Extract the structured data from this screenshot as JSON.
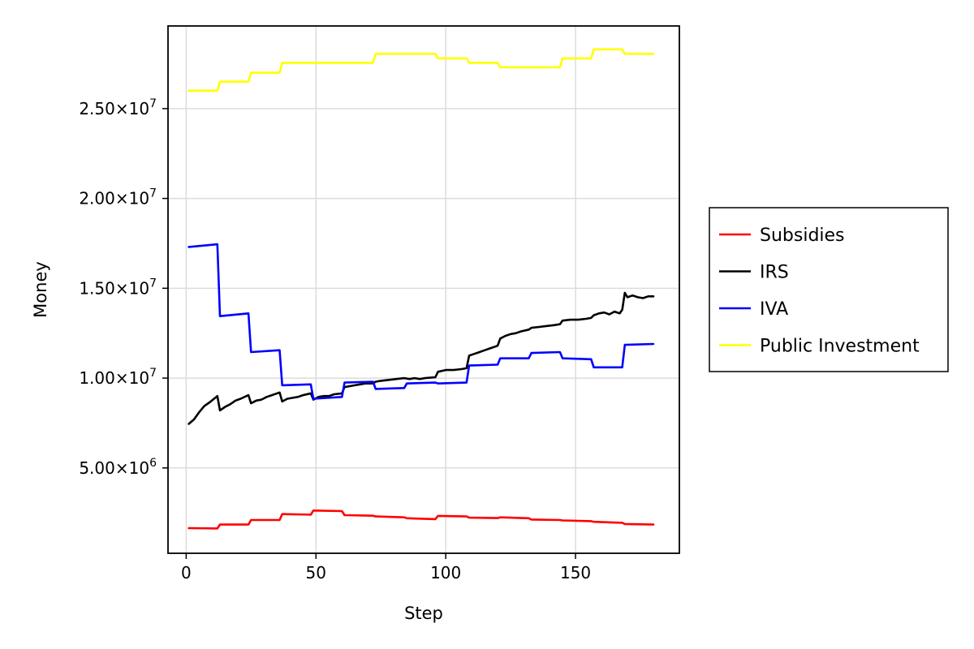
{
  "chart_data": {
    "type": "line",
    "title": "",
    "xlabel": "Step",
    "ylabel": "Money",
    "xlim": [
      -7,
      190
    ],
    "ylim": [
      250000,
      29600000
    ],
    "grid": true,
    "legend_position": "right",
    "x_ticks": [
      0,
      50,
      100,
      150
    ],
    "x_tick_labels": [
      "0",
      "50",
      "100",
      "150"
    ],
    "y_ticks": [
      5000000,
      10000000,
      15000000,
      20000000,
      25000000
    ],
    "y_tick_labels": [
      {
        "mantissa": "5.00×10",
        "exp": "6"
      },
      {
        "mantissa": "1.00×10",
        "exp": "7"
      },
      {
        "mantissa": "1.50×10",
        "exp": "7"
      },
      {
        "mantissa": "2.00×10",
        "exp": "7"
      },
      {
        "mantissa": "2.50×10",
        "exp": "7"
      }
    ],
    "series": [
      {
        "name": "Subsidies",
        "color": "#ff0000",
        "points": [
          [
            1,
            1650000
          ],
          [
            12,
            1630000
          ],
          [
            13,
            1850000
          ],
          [
            24,
            1850000
          ],
          [
            25,
            2100000
          ],
          [
            36,
            2100000
          ],
          [
            37,
            2430000
          ],
          [
            48,
            2400000
          ],
          [
            49,
            2630000
          ],
          [
            60,
            2600000
          ],
          [
            61,
            2370000
          ],
          [
            72,
            2340000
          ],
          [
            73,
            2300000
          ],
          [
            84,
            2250000
          ],
          [
            85,
            2200000
          ],
          [
            96,
            2150000
          ],
          [
            97,
            2330000
          ],
          [
            108,
            2300000
          ],
          [
            109,
            2230000
          ],
          [
            120,
            2210000
          ],
          [
            121,
            2250000
          ],
          [
            132,
            2200000
          ],
          [
            133,
            2130000
          ],
          [
            144,
            2100000
          ],
          [
            145,
            2080000
          ],
          [
            156,
            2040000
          ],
          [
            157,
            2000000
          ],
          [
            168,
            1950000
          ],
          [
            169,
            1880000
          ],
          [
            180,
            1850000
          ]
        ]
      },
      {
        "name": "IRS",
        "color": "#000000",
        "points": [
          [
            1,
            7450000
          ],
          [
            3,
            7700000
          ],
          [
            5,
            8100000
          ],
          [
            7,
            8450000
          ],
          [
            9,
            8650000
          ],
          [
            12,
            9000000
          ],
          [
            13,
            8200000
          ],
          [
            15,
            8400000
          ],
          [
            17,
            8550000
          ],
          [
            19,
            8750000
          ],
          [
            21,
            8850000
          ],
          [
            24,
            9050000
          ],
          [
            25,
            8600000
          ],
          [
            27,
            8750000
          ],
          [
            29,
            8800000
          ],
          [
            31,
            8950000
          ],
          [
            33,
            9050000
          ],
          [
            36,
            9200000
          ],
          [
            37,
            8700000
          ],
          [
            39,
            8850000
          ],
          [
            41,
            8900000
          ],
          [
            43,
            8950000
          ],
          [
            45,
            9050000
          ],
          [
            48,
            9150000
          ],
          [
            49,
            8800000
          ],
          [
            51,
            8950000
          ],
          [
            53,
            9000000
          ],
          [
            55,
            9000000
          ],
          [
            57,
            9100000
          ],
          [
            60,
            9150000
          ],
          [
            61,
            9500000
          ],
          [
            63,
            9550000
          ],
          [
            65,
            9600000
          ],
          [
            67,
            9650000
          ],
          [
            69,
            9700000
          ],
          [
            72,
            9700000
          ],
          [
            73,
            9800000
          ],
          [
            75,
            9850000
          ],
          [
            78,
            9900000
          ],
          [
            81,
            9950000
          ],
          [
            84,
            10000000
          ],
          [
            86,
            9950000
          ],
          [
            88,
            10000000
          ],
          [
            90,
            9950000
          ],
          [
            92,
            10000000
          ],
          [
            96,
            10050000
          ],
          [
            97,
            10350000
          ],
          [
            100,
            10450000
          ],
          [
            103,
            10450000
          ],
          [
            106,
            10500000
          ],
          [
            108,
            10550000
          ],
          [
            109,
            11250000
          ],
          [
            111,
            11350000
          ],
          [
            113,
            11450000
          ],
          [
            115,
            11550000
          ],
          [
            117,
            11650000
          ],
          [
            120,
            11800000
          ],
          [
            121,
            12200000
          ],
          [
            123,
            12350000
          ],
          [
            125,
            12450000
          ],
          [
            127,
            12500000
          ],
          [
            129,
            12600000
          ],
          [
            132,
            12700000
          ],
          [
            133,
            12800000
          ],
          [
            136,
            12850000
          ],
          [
            139,
            12900000
          ],
          [
            142,
            12950000
          ],
          [
            144,
            13000000
          ],
          [
            145,
            13200000
          ],
          [
            148,
            13250000
          ],
          [
            151,
            13250000
          ],
          [
            154,
            13300000
          ],
          [
            156,
            13350000
          ],
          [
            157,
            13500000
          ],
          [
            159,
            13600000
          ],
          [
            161,
            13650000
          ],
          [
            163,
            13550000
          ],
          [
            165,
            13700000
          ],
          [
            167,
            13600000
          ],
          [
            168,
            13800000
          ],
          [
            169,
            14750000
          ],
          [
            170,
            14500000
          ],
          [
            172,
            14600000
          ],
          [
            174,
            14500000
          ],
          [
            176,
            14450000
          ],
          [
            178,
            14550000
          ],
          [
            180,
            14550000
          ]
        ]
      },
      {
        "name": "IVA",
        "color": "#0000ff",
        "points": [
          [
            1,
            17300000
          ],
          [
            12,
            17450000
          ],
          [
            13,
            13450000
          ],
          [
            24,
            13600000
          ],
          [
            25,
            11450000
          ],
          [
            36,
            11550000
          ],
          [
            37,
            9600000
          ],
          [
            48,
            9650000
          ],
          [
            49,
            8850000
          ],
          [
            60,
            8950000
          ],
          [
            61,
            9750000
          ],
          [
            72,
            9800000
          ],
          [
            73,
            9400000
          ],
          [
            84,
            9450000
          ],
          [
            85,
            9700000
          ],
          [
            96,
            9750000
          ],
          [
            97,
            9700000
          ],
          [
            108,
            9750000
          ],
          [
            109,
            10700000
          ],
          [
            120,
            10750000
          ],
          [
            121,
            11100000
          ],
          [
            132,
            11100000
          ],
          [
            133,
            11400000
          ],
          [
            144,
            11450000
          ],
          [
            145,
            11100000
          ],
          [
            156,
            11050000
          ],
          [
            157,
            10600000
          ],
          [
            168,
            10600000
          ],
          [
            169,
            11850000
          ],
          [
            180,
            11900000
          ]
        ]
      },
      {
        "name": "Public Investment",
        "color": "#ffff00",
        "points": [
          [
            1,
            26000000
          ],
          [
            12,
            26000000
          ],
          [
            13,
            26500000
          ],
          [
            24,
            26500000
          ],
          [
            25,
            27000000
          ],
          [
            36,
            27000000
          ],
          [
            37,
            27550000
          ],
          [
            72,
            27550000
          ],
          [
            73,
            28050000
          ],
          [
            96,
            28050000
          ],
          [
            97,
            27800000
          ],
          [
            108,
            27800000
          ],
          [
            109,
            27550000
          ],
          [
            120,
            27550000
          ],
          [
            121,
            27300000
          ],
          [
            144,
            27300000
          ],
          [
            145,
            27800000
          ],
          [
            156,
            27800000
          ],
          [
            157,
            28300000
          ],
          [
            168,
            28300000
          ],
          [
            169,
            28050000
          ],
          [
            180,
            28050000
          ]
        ]
      }
    ]
  }
}
